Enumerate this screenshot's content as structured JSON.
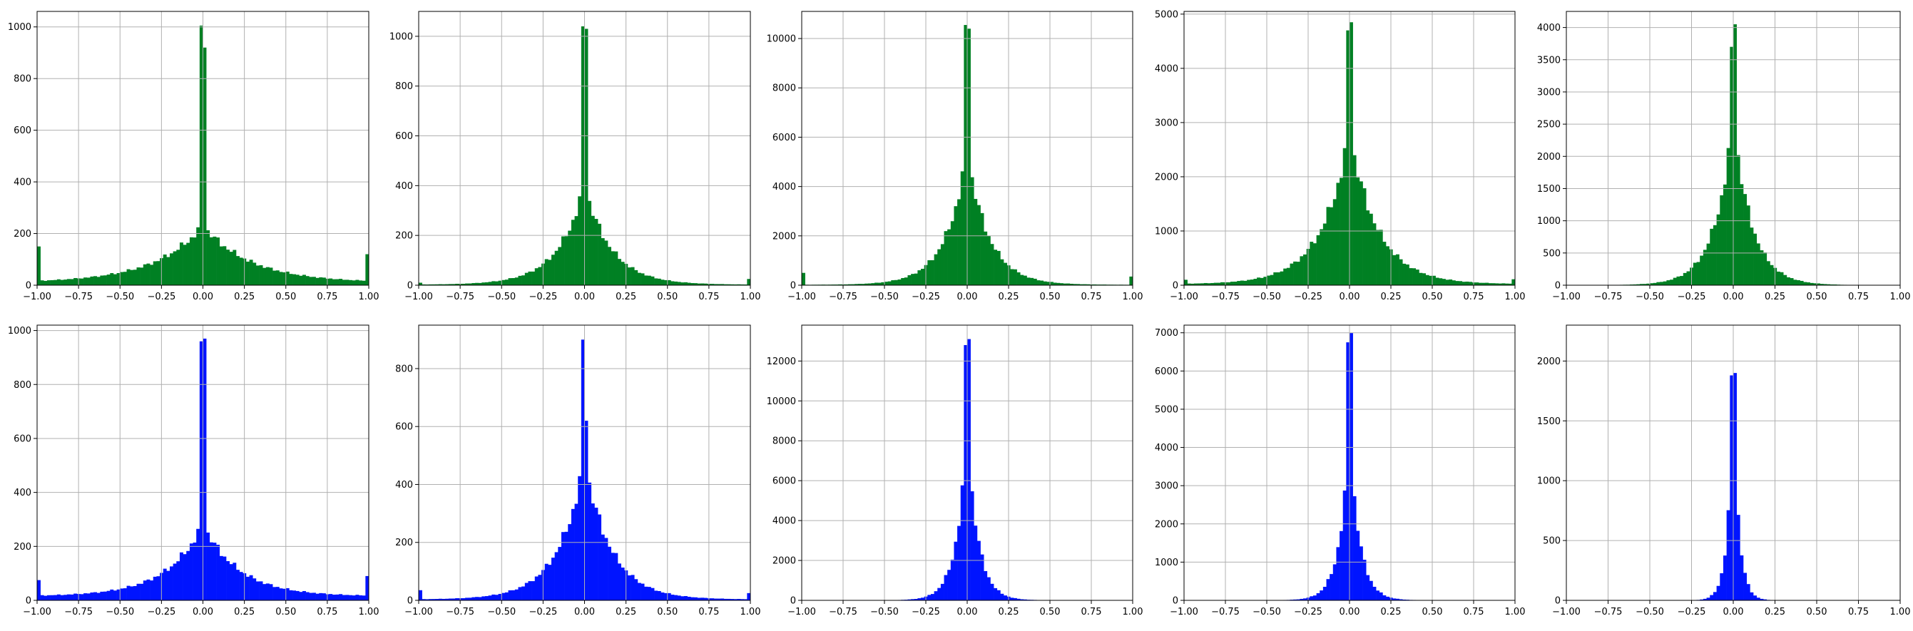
{
  "chart_data": [
    {
      "panel": "r1c1",
      "type": "bar",
      "row": 1,
      "col": 1,
      "color": "#008023",
      "xlim": [
        -1,
        1
      ],
      "ylim": [
        0,
        1060
      ],
      "yticks": [
        0,
        200,
        400,
        600,
        800,
        1000
      ],
      "xticks": [
        -1,
        -0.75,
        -0.5,
        -0.25,
        0,
        0.25,
        0.5,
        0.75,
        1
      ],
      "xtick_labels": [
        "−1.00",
        "−0.75",
        "−0.50",
        "−0.25",
        "0.00",
        "0.25",
        "0.50",
        "0.75",
        "1.00"
      ],
      "grid": true,
      "center_peaks": [
        1005,
        920
      ],
      "center_base": 230,
      "tail_value": 10,
      "decay": 0.29,
      "edge_spikes": [
        150,
        120
      ]
    },
    {
      "panel": "r1c2",
      "type": "bar",
      "row": 1,
      "col": 2,
      "color": "#008023",
      "xlim": [
        -1,
        1
      ],
      "ylim": [
        0,
        1100
      ],
      "yticks": [
        0,
        200,
        400,
        600,
        800,
        1000
      ],
      "xticks": [
        -1,
        -0.75,
        -0.5,
        -0.25,
        0,
        0.25,
        0.5,
        0.75,
        1
      ],
      "xtick_labels": [
        "−1.00",
        "−0.75",
        "−0.50",
        "−0.25",
        "0.00",
        "0.25",
        "0.50",
        "0.75",
        "1.00"
      ],
      "grid": true,
      "center_peaks": [
        1040,
        1030
      ],
      "center_base": 400,
      "tail_value": 2,
      "decay": 0.16,
      "edge_spikes": [
        10,
        25
      ]
    },
    {
      "panel": "r1c3",
      "type": "bar",
      "row": 1,
      "col": 3,
      "color": "#008023",
      "xlim": [
        -1,
        1
      ],
      "ylim": [
        0,
        11100
      ],
      "yticks": [
        0,
        2000,
        4000,
        6000,
        8000,
        10000
      ],
      "xticks": [
        -1,
        -0.75,
        -0.5,
        -0.25,
        0,
        0.25,
        0.5,
        0.75,
        1
      ],
      "xtick_labels": [
        "−1.00",
        "−0.75",
        "−0.50",
        "−0.25",
        "0.00",
        "0.25",
        "0.50",
        "0.75",
        "1.00"
      ],
      "grid": true,
      "center_peaks": [
        10550,
        10400
      ],
      "center_base": 5400,
      "tail_value": 15,
      "decay": 0.13,
      "edge_spikes": [
        500,
        350
      ]
    },
    {
      "panel": "r1c4",
      "type": "bar",
      "row": 1,
      "col": 4,
      "color": "#008023",
      "xlim": [
        -1,
        1
      ],
      "ylim": [
        0,
        5050
      ],
      "yticks": [
        0,
        1000,
        2000,
        3000,
        4000,
        5000
      ],
      "xticks": [
        -1,
        -0.75,
        -0.5,
        -0.25,
        0,
        0.25,
        0.5,
        0.75,
        1
      ],
      "xtick_labels": [
        "−1.00",
        "−0.75",
        "−0.50",
        "−0.25",
        "0.00",
        "0.25",
        "0.50",
        "0.75",
        "1.00"
      ],
      "grid": true,
      "center_peaks": [
        4700,
        4850
      ],
      "center_base": 2800,
      "tail_value": 20,
      "decay": 0.17,
      "edge_spikes": [
        100,
        110
      ]
    },
    {
      "panel": "r1c5",
      "type": "bar",
      "row": 1,
      "col": 5,
      "color": "#008023",
      "xlim": [
        -1,
        1
      ],
      "ylim": [
        0,
        4250
      ],
      "yticks": [
        0,
        500,
        1000,
        1500,
        2000,
        2500,
        3000,
        3500,
        4000
      ],
      "xticks": [
        -1,
        -0.75,
        -0.5,
        -0.25,
        0,
        0.25,
        0.5,
        0.75,
        1
      ],
      "xtick_labels": [
        "−1.00",
        "−0.75",
        "−0.50",
        "−0.25",
        "0.00",
        "0.25",
        "0.50",
        "0.75",
        "1.00"
      ],
      "grid": true,
      "center_peaks": [
        3700,
        4050
      ],
      "center_base": 2600,
      "tail_value": 0,
      "decay": 0.11,
      "edge_spikes": [
        0,
        0
      ]
    },
    {
      "panel": "r2c1",
      "type": "bar",
      "row": 2,
      "col": 1,
      "color": "#0014ff",
      "xlim": [
        -1,
        1
      ],
      "ylim": [
        0,
        1020
      ],
      "yticks": [
        0,
        200,
        400,
        600,
        800,
        1000
      ],
      "xticks": [
        -1,
        -0.75,
        -0.5,
        -0.25,
        0,
        0.25,
        0.5,
        0.75,
        1
      ],
      "xtick_labels": [
        "−1.00",
        "−0.75",
        "−0.50",
        "−0.25",
        "0.00",
        "0.25",
        "0.50",
        "0.75",
        "1.00"
      ],
      "grid": true,
      "center_peaks": [
        960,
        970
      ],
      "center_base": 280,
      "tail_value": 15,
      "decay": 0.22,
      "edge_spikes": [
        75,
        90
      ]
    },
    {
      "panel": "r2c2",
      "type": "bar",
      "row": 2,
      "col": 2,
      "color": "#0014ff",
      "xlim": [
        -1,
        1
      ],
      "ylim": [
        0,
        950
      ],
      "yticks": [
        0,
        200,
        400,
        600,
        800
      ],
      "xticks": [
        -1,
        -0.75,
        -0.5,
        -0.25,
        0,
        0.25,
        0.5,
        0.75,
        1
      ],
      "xtick_labels": [
        "−1.00",
        "−0.75",
        "−0.50",
        "−0.25",
        "0.00",
        "0.25",
        "0.50",
        "0.75",
        "1.00"
      ],
      "grid": true,
      "center_peaks": [
        900,
        620
      ],
      "center_base": 480,
      "tail_value": 3,
      "decay": 0.16,
      "edge_spikes": [
        35,
        25
      ]
    },
    {
      "panel": "r2c3",
      "type": "bar",
      "row": 2,
      "col": 3,
      "color": "#0014ff",
      "xlim": [
        -1,
        1
      ],
      "ylim": [
        0,
        13800
      ],
      "yticks": [
        0,
        2000,
        4000,
        6000,
        8000,
        10000,
        12000
      ],
      "xticks": [
        -1,
        -0.75,
        -0.5,
        -0.25,
        0,
        0.25,
        0.5,
        0.75,
        1
      ],
      "xtick_labels": [
        "−1.00",
        "−0.75",
        "−0.50",
        "−0.25",
        "0.00",
        "0.25",
        "0.50",
        "0.75",
        "1.00"
      ],
      "grid": true,
      "center_peaks": [
        12800,
        13100
      ],
      "center_base": 8500,
      "tail_value": 5,
      "decay": 0.065,
      "edge_spikes": [
        0,
        0
      ]
    },
    {
      "panel": "r2c4",
      "type": "bar",
      "row": 2,
      "col": 4,
      "color": "#0014ff",
      "xlim": [
        -1,
        1
      ],
      "ylim": [
        0,
        7200
      ],
      "yticks": [
        0,
        1000,
        2000,
        3000,
        4000,
        5000,
        6000,
        7000
      ],
      "xticks": [
        -1,
        -0.75,
        -0.5,
        -0.25,
        0,
        0.25,
        0.5,
        0.75,
        1
      ],
      "xtick_labels": [
        "−1.00",
        "−0.75",
        "−0.50",
        "−0.25",
        "0.00",
        "0.25",
        "0.50",
        "0.75",
        "1.00"
      ],
      "grid": true,
      "center_peaks": [
        6750,
        7000
      ],
      "center_base": 4400,
      "tail_value": 3,
      "decay": 0.06,
      "edge_spikes": [
        0,
        0
      ]
    },
    {
      "panel": "r2c5",
      "type": "bar",
      "row": 2,
      "col": 5,
      "color": "#0014ff",
      "xlim": [
        -1,
        1
      ],
      "ylim": [
        0,
        2300
      ],
      "yticks": [
        0,
        500,
        1000,
        1500,
        2000
      ],
      "xticks": [
        -1,
        -0.75,
        -0.5,
        -0.25,
        0,
        0.25,
        0.5,
        0.75,
        1
      ],
      "xtick_labels": [
        "−1.00",
        "−0.75",
        "−0.50",
        "−0.25",
        "0.00",
        "0.25",
        "0.50",
        "0.75",
        "1.00"
      ],
      "grid": true,
      "center_peaks": [
        1880,
        1900
      ],
      "center_base": 1650,
      "tail_value": 0,
      "decay": 0.035,
      "edge_spikes": [
        0,
        0
      ]
    }
  ]
}
